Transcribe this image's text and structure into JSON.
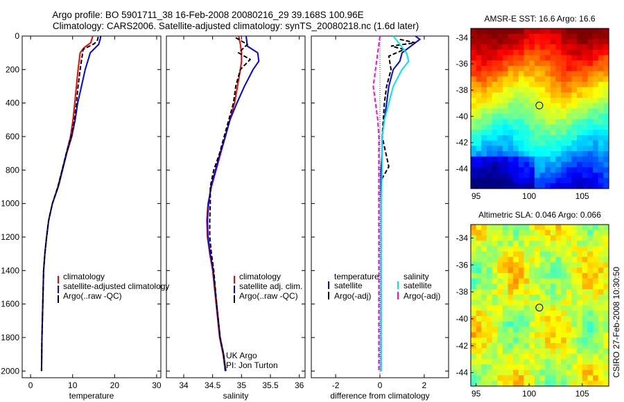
{
  "header": {
    "title_line1": "Argo profile: BO 5901711_38 16-Feb-2008 20080216_29 39.168S 100.96E",
    "title_line2": "Climatology: CARS2006. Satellite-adjusted climatology: synTS_20080218.nc (1.6d later)"
  },
  "colors": {
    "climatology": "#ff0000",
    "satellite": "#0000ff",
    "argo": "#000000",
    "salinity_satellite": "#00e5ee",
    "salinity_argo": "#ff00ff"
  },
  "chart_data": [
    {
      "type": "line",
      "xlabel": "temperature",
      "xlim": [
        -2,
        31
      ],
      "ylim": [
        2040,
        0
      ],
      "xticks": [
        0,
        10,
        20,
        30
      ],
      "yticks": [
        0,
        200,
        400,
        600,
        800,
        1000,
        1200,
        1400,
        1600,
        1800,
        2000
      ],
      "legend": [
        "climatology",
        "satellite-adjusted climatology",
        "Argo(..raw -QC)"
      ],
      "series": [
        {
          "name": "climatology",
          "x": [
            14.8,
            14.3,
            12.7,
            11.8,
            11.3,
            10.9,
            10.5,
            10.1,
            9.5,
            8.5,
            7.5,
            6.5,
            5.2,
            4.3,
            3.8,
            3.4,
            3.1,
            2.9,
            2.7,
            2.6
          ],
          "y": [
            0,
            40,
            70,
            100,
            200,
            300,
            400,
            500,
            600,
            700,
            800,
            900,
            1000,
            1100,
            1200,
            1300,
            1400,
            1600,
            1800,
            2000
          ]
        },
        {
          "name": "satellite-adjusted climatology",
          "x": [
            16.7,
            16.6,
            16.2,
            14.2,
            13.0,
            12.1,
            11.2,
            10.6,
            9.8,
            8.6,
            7.6,
            6.6,
            5.2,
            4.3,
            3.8,
            3.4,
            3.1,
            2.9,
            2.7,
            2.6
          ],
          "y": [
            0,
            15,
            50,
            100,
            200,
            300,
            400,
            500,
            600,
            700,
            800,
            900,
            1000,
            1100,
            1200,
            1300,
            1400,
            1600,
            1800,
            2000
          ]
        },
        {
          "name": "Argo(..raw -QC)",
          "x": [
            16.1,
            15.9,
            15.2,
            12.5,
            11.8,
            11.3,
            10.9,
            10.4,
            9.6,
            8.5,
            7.5,
            6.5,
            5.2,
            4.3,
            3.8,
            3.4,
            3.1,
            2.9,
            2.7,
            2.6
          ],
          "y": [
            5,
            25,
            45,
            80,
            200,
            300,
            400,
            500,
            600,
            700,
            800,
            900,
            1000,
            1100,
            1200,
            1300,
            1400,
            1600,
            1800,
            2000
          ]
        }
      ]
    },
    {
      "type": "line",
      "xlabel": "salinity",
      "xlim": [
        33.7,
        36.1
      ],
      "ylim": [
        2040,
        0
      ],
      "xticks": [
        34,
        34.5,
        35,
        35.5,
        36
      ],
      "yticks": [
        0,
        200,
        400,
        600,
        800,
        1000,
        1200,
        1400,
        1600,
        1800,
        2000
      ],
      "legend": [
        "climatology",
        "satellite adj. clim.",
        "Argo(..raw -QC)"
      ],
      "annotations": [
        "UK Argo",
        "PI: Jon Turton"
      ],
      "series": [
        {
          "name": "climatology",
          "x": [
            34.95,
            34.98,
            35.0,
            35.0,
            34.98,
            34.93,
            34.88,
            34.8,
            34.72,
            34.64,
            34.56,
            34.48,
            34.42,
            34.4,
            34.41,
            34.45,
            34.5,
            34.56,
            34.62,
            34.68,
            34.72
          ],
          "y": [
            0,
            50,
            100,
            150,
            200,
            300,
            400,
            500,
            600,
            700,
            800,
            900,
            1000,
            1100,
            1200,
            1300,
            1400,
            1600,
            1800,
            1900,
            2000
          ]
        },
        {
          "name": "satellite adj. clim.",
          "x": [
            35.08,
            35.1,
            35.28,
            35.3,
            35.2,
            35.05,
            34.92,
            34.8,
            34.72,
            34.63,
            34.55,
            34.47,
            34.43,
            34.41,
            34.42,
            34.46,
            34.51,
            34.57,
            34.63,
            34.69,
            34.73
          ],
          "y": [
            0,
            60,
            100,
            150,
            200,
            300,
            400,
            500,
            600,
            700,
            800,
            900,
            1000,
            1100,
            1200,
            1300,
            1400,
            1600,
            1800,
            1900,
            2000
          ]
        },
        {
          "name": "Argo(..raw -QC)",
          "x": [
            34.9,
            35.1,
            34.95,
            35.15,
            34.98,
            34.9,
            34.86,
            34.78,
            34.7,
            34.62,
            34.52,
            34.46,
            34.46,
            34.45,
            34.45,
            34.48,
            34.52,
            34.57,
            34.63,
            34.69,
            34.72
          ],
          "y": [
            10,
            50,
            100,
            140,
            200,
            300,
            400,
            500,
            600,
            700,
            800,
            900,
            1000,
            1100,
            1200,
            1300,
            1400,
            1600,
            1800,
            1900,
            2000
          ]
        }
      ]
    },
    {
      "type": "line",
      "xlabel": "difference from climatology",
      "xlim": [
        -3.1,
        3.1
      ],
      "ylim": [
        2040,
        0
      ],
      "xticks": [
        -2,
        0,
        2
      ],
      "yticks": [
        0,
        200,
        400,
        600,
        800,
        1000,
        1200,
        1400,
        1600,
        1800,
        2000
      ],
      "legend_temperature_heading": "temperature",
      "legend_salinity_heading": "salinity",
      "legend": [
        "satellite",
        "Argo(-adj)",
        "satellite",
        "Argo(-adj)"
      ],
      "series": [
        {
          "name": "temperature satellite",
          "x": [
            1.6,
            1.8,
            1.5,
            1.0,
            0.9,
            0.6,
            0.4,
            0.3,
            0.2,
            0.1,
            0.1,
            0.05,
            0.05,
            0.05,
            0.05,
            0.05,
            0.05,
            0.05,
            0.05
          ],
          "y": [
            0,
            20,
            50,
            100,
            150,
            200,
            300,
            400,
            500,
            600,
            700,
            800,
            900,
            1000,
            1200,
            1400,
            1600,
            1800,
            2000
          ]
        },
        {
          "name": "temperature Argo(-adj)",
          "x": [
            0.9,
            1.6,
            0.5,
            1.1,
            0.4,
            0.5,
            0.3,
            0.2,
            0.15,
            0.1,
            0.4,
            0.1,
            0.05,
            0.05,
            0.05,
            0.05,
            0.05,
            0.05,
            0.05
          ],
          "y": [
            20,
            40,
            60,
            80,
            120,
            200,
            300,
            400,
            500,
            600,
            780,
            850,
            900,
            1000,
            1200,
            1400,
            1600,
            1800,
            2000
          ]
        },
        {
          "name": "salinity satellite",
          "x": [
            0.6,
            0.9,
            1.2,
            1.3,
            1.0,
            0.8,
            0.6,
            0.4,
            0.2,
            0.1,
            0.1,
            0.05,
            0.05,
            0.05,
            0.05,
            0.05,
            0.05
          ],
          "y": [
            0,
            50,
            100,
            150,
            200,
            250,
            300,
            400,
            500,
            600,
            800,
            1000,
            1200,
            1400,
            1600,
            1800,
            2000
          ]
        },
        {
          "name": "salinity Argo(-adj)",
          "x": [
            0.0,
            -0.1,
            -0.2,
            -0.3,
            -0.2,
            -0.1,
            -0.05,
            -0.05,
            -0.05,
            -0.05,
            -0.05,
            -0.05,
            -0.05,
            -0.05,
            -0.05,
            -0.05,
            -0.05
          ],
          "y": [
            0,
            100,
            200,
            300,
            400,
            500,
            600,
            700,
            800,
            900,
            1000,
            1200,
            1400,
            1600,
            1800,
            1900,
            2000
          ]
        }
      ]
    },
    {
      "type": "heatmap",
      "title": "AMSR-E SST: 16.6 Argo: 16.6",
      "xlim": [
        94.5,
        107.5
      ],
      "ylim": [
        -45.5,
        -33.3
      ],
      "xticks": [
        95,
        100,
        105
      ],
      "yticks": [
        -34,
        -36,
        -38,
        -40,
        -42,
        -44
      ],
      "marker": {
        "lon": 100.96,
        "lat": -39.17
      }
    },
    {
      "type": "heatmap",
      "title": "Altimetric SLA: 0.046 Argo: 0.066",
      "xlim": [
        94.5,
        107.5
      ],
      "ylim": [
        -45.0,
        -33.0
      ],
      "xticks": [
        95,
        100,
        105
      ],
      "yticks": [
        -34,
        -36,
        -38,
        -40,
        -42,
        -44
      ],
      "marker": {
        "lon": 100.96,
        "lat": -39.17
      }
    }
  ],
  "footer": {
    "credit": "CSIRO 27-Feb-2008 10:30:50"
  }
}
